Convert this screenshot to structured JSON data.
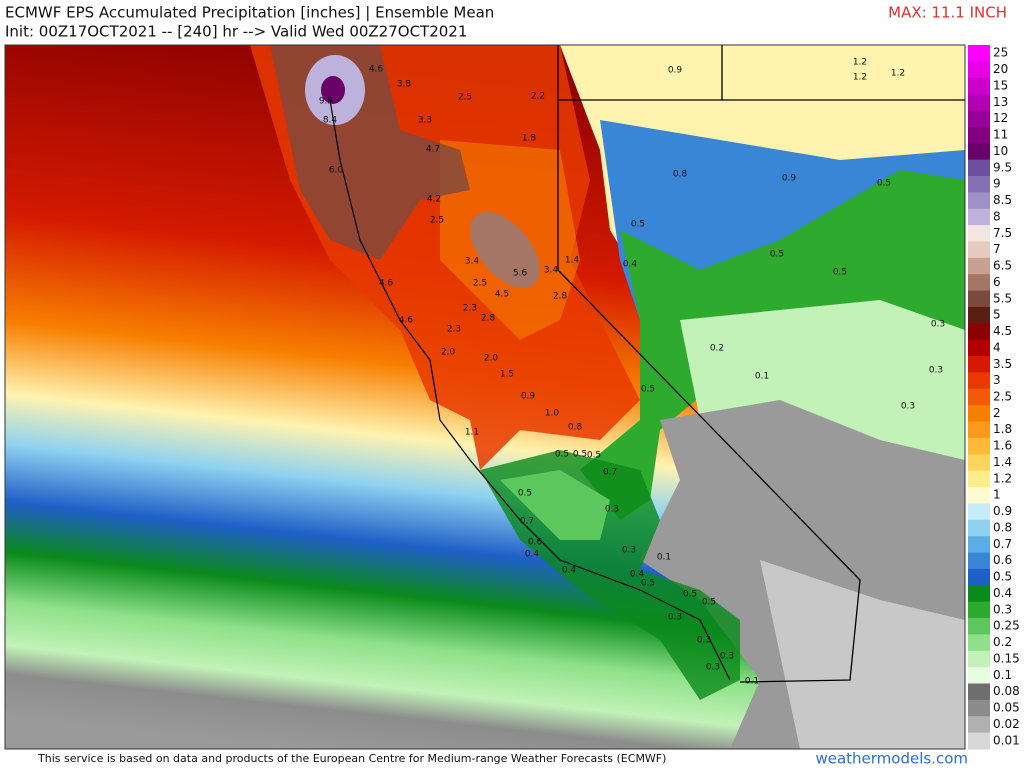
{
  "header": {
    "title": "ECMWF EPS Accumulated Precipitation [inches] | Ensemble Mean",
    "subtitle": "Init: 00Z17OCT2021 -- [240] hr --> Valid Wed 00Z27OCT2021",
    "max_label": "MAX: 11.1 INCH"
  },
  "colorbar": {
    "labels": [
      "25",
      "20",
      "15",
      "13",
      "12",
      "11",
      "10",
      "9.5",
      "9",
      "8.5",
      "8",
      "7.5",
      "7",
      "6.5",
      "6",
      "5.5",
      "5",
      "4.5",
      "4",
      "3.5",
      "3",
      "2.5",
      "2",
      "1.8",
      "1.6",
      "1.4",
      "1.2",
      "1",
      "0.9",
      "0.8",
      "0.7",
      "0.6",
      "0.5",
      "0.4",
      "0.3",
      "0.25",
      "0.2",
      "0.15",
      "0.1",
      "0.08",
      "0.05",
      "0.02",
      "0.01"
    ],
    "colors": [
      "#ff00ff",
      "#e600e6",
      "#cc00cc",
      "#b300b3",
      "#990099",
      "#800080",
      "#6a006a",
      "#6b4fa0",
      "#8570b5",
      "#9e90c8",
      "#bcb2db",
      "#f3e6e0",
      "#e8cbbf",
      "#c9a193",
      "#a57566",
      "#7d4a3e",
      "#5a1e12",
      "#8b0000",
      "#b00000",
      "#d41a00",
      "#e83a00",
      "#f25a0a",
      "#f77f00",
      "#fb9a1a",
      "#fdb93a",
      "#fed45c",
      "#ffec8c",
      "#fffbd0",
      "#c6ecf8",
      "#8fd2f0",
      "#5aaee6",
      "#3a86d6",
      "#1f5fc8",
      "#0a8a1a",
      "#2eaa2e",
      "#5cc75c",
      "#8fe08a",
      "#c2f2b8",
      "#e6fde0",
      "#6e6e6e",
      "#8c8c8c",
      "#b0b0b0",
      "#d8d8d8"
    ]
  },
  "map_labels": [
    "0.9",
    "1.2",
    "1.2",
    "1.2",
    "4.6",
    "3.8",
    "2.5",
    "2.2",
    "9.5",
    "8.4",
    "3.3",
    "1.8",
    "4.7",
    "6.0",
    "0.8",
    "0.9",
    "0.5",
    "4.2",
    "2.5",
    "0.5",
    "0.5",
    "3.4",
    "5.6",
    "3.4",
    "1.4",
    "0.4",
    "0.5",
    "4.6",
    "2.5",
    "4.5",
    "2.8",
    "4.6",
    "2.3",
    "2.8",
    "2.3",
    "0.3",
    "0.2",
    "2.0",
    "2.0",
    "0.1",
    "0.3",
    "1.5",
    "0.5",
    "0.9",
    "0.3",
    "1.0",
    "0.8",
    "1.1",
    "0.5",
    "0.5",
    "0.5",
    "0.7",
    "0.5",
    "0.3",
    "0.7",
    "0.6",
    "0.4",
    "0.3",
    "0.1",
    "0.4",
    "0.4",
    "0.5",
    "0.5",
    "0.5",
    "0.3",
    "0.3",
    "0.3",
    "0.3",
    "0.1"
  ],
  "footer": {
    "credit": "This service is based on data and products of the European Centre for Medium-range Weather Forecasts (ECMWF)",
    "site": "weathermodels.com"
  }
}
